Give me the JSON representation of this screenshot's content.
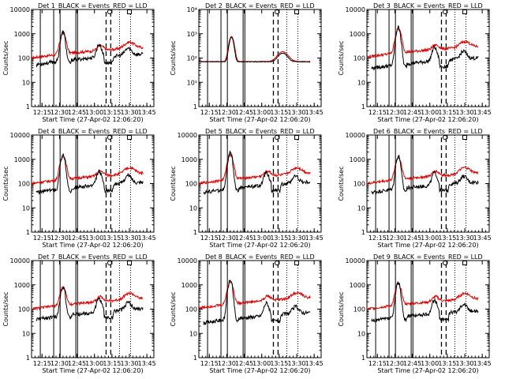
{
  "chart_data": [
    {
      "type": "line",
      "title": "Det 1",
      "peak": 1100,
      "base_black": 100,
      "scale_black": 1.0,
      "red_scale": 1.0,
      "flat": false
    },
    {
      "type": "line",
      "title": "Det 2",
      "peak": 800,
      "base_black": 100,
      "scale_black": 1.0,
      "red_scale": 1.0,
      "flat": true
    },
    {
      "type": "line",
      "title": "Det 3",
      "peak": 1800,
      "base_black": 70,
      "scale_black": 0.8,
      "red_scale": 1.1,
      "flat": false
    },
    {
      "type": "line",
      "title": "Det 4",
      "peak": 1500,
      "base_black": 80,
      "scale_black": 0.9,
      "red_scale": 1.0,
      "flat": false
    },
    {
      "type": "line",
      "title": "Det 5",
      "peak": 1800,
      "base_black": 80,
      "scale_black": 0.8,
      "red_scale": 1.0,
      "flat": false
    },
    {
      "type": "line",
      "title": "Det 6",
      "peak": 1300,
      "base_black": 80,
      "scale_black": 0.8,
      "red_scale": 1.0,
      "flat": false
    },
    {
      "type": "line",
      "title": "Det 7",
      "peak": 800,
      "base_black": 70,
      "scale_black": 0.8,
      "red_scale": 1.0,
      "flat": false
    },
    {
      "type": "line",
      "title": "Det 8",
      "peak": 1500,
      "base_black": 50,
      "scale_black": 0.5,
      "red_scale": 1.1,
      "flat": false
    },
    {
      "type": "line",
      "title": "Det 9",
      "peak": 1200,
      "base_black": 60,
      "scale_black": 0.7,
      "red_scale": 1.0,
      "flat": false
    }
  ],
  "common": {
    "legend_text": "_BLACK = Events_RED = LLD",
    "ylabel": "Counts/sec",
    "xlabel": "Start Time (27-Apr-02 12:06:20)",
    "x_ticks": [
      "12:15",
      "12:30",
      "12:45",
      "13:00",
      "13:15",
      "13:30",
      "13:45"
    ],
    "x_ticks_min": [
      9,
      24,
      39,
      54,
      69,
      84,
      99
    ],
    "x_range_min": [
      0,
      105
    ],
    "y_ticks": [
      "1",
      "10",
      "100",
      "1000",
      "10000"
    ],
    "y_ticks_det2": [
      "1",
      "10¹",
      "10²",
      "10³",
      "10⁴"
    ],
    "y_range": [
      1,
      10000
    ],
    "y_log": true,
    "solid_lines_min": [
      7.5,
      19,
      24.5,
      38,
      39.5
    ],
    "dashed_lines_min": [
      64,
      68
    ],
    "dotted_line_min": [
      75.5,
      85
    ],
    "event_min": [
      7.5,
      39.5
    ],
    "colors": {
      "events": "#000000",
      "lld": "#e00000"
    }
  }
}
